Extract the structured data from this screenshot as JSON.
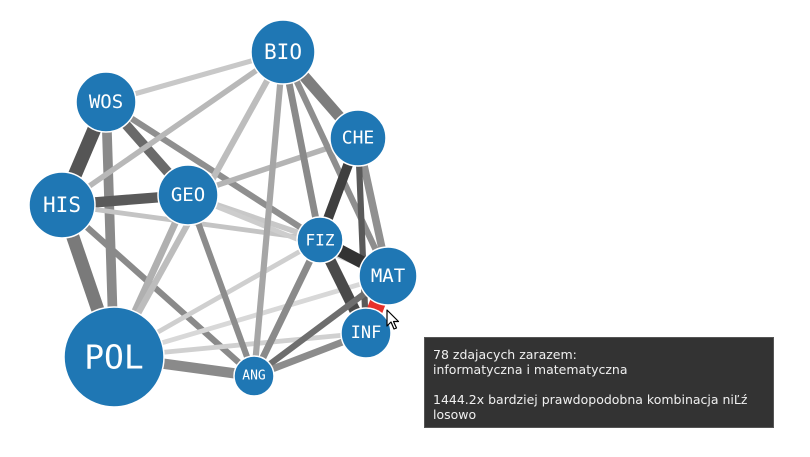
{
  "graph": {
    "nodes": [
      {
        "id": "BIO",
        "label": "BIO"
      },
      {
        "id": "WOS",
        "label": "WOS"
      },
      {
        "id": "CHE",
        "label": "CHE"
      },
      {
        "id": "HIS",
        "label": "HIS"
      },
      {
        "id": "GEO",
        "label": "GEO"
      },
      {
        "id": "FIZ",
        "label": "FIZ"
      },
      {
        "id": "MAT",
        "label": "MAT"
      },
      {
        "id": "INF",
        "label": "INF"
      },
      {
        "id": "POL",
        "label": "POL"
      },
      {
        "id": "ANG",
        "label": "ANG"
      }
    ],
    "edges": [
      {
        "source": "WOS",
        "target": "HIS",
        "weight": 0.85,
        "shade": "#555555"
      },
      {
        "source": "HIS",
        "target": "POL",
        "weight": 0.8,
        "shade": "#7a7a7a"
      },
      {
        "source": "WOS",
        "target": "POL",
        "weight": 0.55,
        "shade": "#8a8a8a"
      },
      {
        "source": "HIS",
        "target": "GEO",
        "weight": 0.6,
        "shade": "#5a5a5a"
      },
      {
        "source": "WOS",
        "target": "GEO",
        "weight": 0.55,
        "shade": "#6a6a6a"
      },
      {
        "source": "WOS",
        "target": "BIO",
        "weight": 0.22,
        "shade": "#c8c8c8"
      },
      {
        "source": "WOS",
        "target": "FIZ",
        "weight": 0.3,
        "shade": "#8f8f8f"
      },
      {
        "source": "HIS",
        "target": "BIO",
        "weight": 0.25,
        "shade": "#b8b8b8"
      },
      {
        "source": "HIS",
        "target": "FIZ",
        "weight": 0.2,
        "shade": "#c4c4c4"
      },
      {
        "source": "HIS",
        "target": "ANG",
        "weight": 0.3,
        "shade": "#8a8a8a"
      },
      {
        "source": "POL",
        "target": "GEO",
        "weight": 0.35,
        "shade": "#b0b0b0"
      },
      {
        "source": "POL",
        "target": "BIO",
        "weight": 0.3,
        "shade": "#bdbdbd"
      },
      {
        "source": "POL",
        "target": "ANG",
        "weight": 0.6,
        "shade": "#8a8a8a"
      },
      {
        "source": "POL",
        "target": "FIZ",
        "weight": 0.2,
        "shade": "#cfcfcf"
      },
      {
        "source": "POL",
        "target": "MAT",
        "weight": 0.2,
        "shade": "#d8d8d8"
      },
      {
        "source": "POL",
        "target": "INF",
        "weight": 0.2,
        "shade": "#d0d0d0"
      },
      {
        "source": "GEO",
        "target": "ANG",
        "weight": 0.3,
        "shade": "#8c8c8c"
      },
      {
        "source": "GEO",
        "target": "FIZ",
        "weight": 0.25,
        "shade": "#c8c8c8"
      },
      {
        "source": "GEO",
        "target": "CHE",
        "weight": 0.25,
        "shade": "#b4b4b4"
      },
      {
        "source": "GEO",
        "target": "MAT",
        "weight": 0.2,
        "shade": "#cdcdcd"
      },
      {
        "source": "BIO",
        "target": "CHE",
        "weight": 0.65,
        "shade": "#7d7d7d"
      },
      {
        "source": "BIO",
        "target": "FIZ",
        "weight": 0.35,
        "shade": "#8a8a8a"
      },
      {
        "source": "BIO",
        "target": "MAT",
        "weight": 0.3,
        "shade": "#8e8e8e"
      },
      {
        "source": "BIO",
        "target": "ANG",
        "weight": 0.3,
        "shade": "#a6a6a6"
      },
      {
        "source": "CHE",
        "target": "FIZ",
        "weight": 0.55,
        "shade": "#3f3f3f"
      },
      {
        "source": "CHE",
        "target": "MAT",
        "weight": 0.4,
        "shade": "#909090"
      },
      {
        "source": "CHE",
        "target": "INF",
        "weight": 0.3,
        "shade": "#5a5a5a"
      },
      {
        "source": "FIZ",
        "target": "MAT",
        "weight": 0.75,
        "shade": "#333333"
      },
      {
        "source": "FIZ",
        "target": "INF",
        "weight": 0.65,
        "shade": "#4a4a4a"
      },
      {
        "source": "FIZ",
        "target": "ANG",
        "weight": 0.35,
        "shade": "#8a8a8a"
      },
      {
        "source": "MAT",
        "target": "ANG",
        "weight": 0.3,
        "shade": "#6e6e6e"
      },
      {
        "source": "INF",
        "target": "ANG",
        "weight": 0.35,
        "shade": "#8c8c8c"
      },
      {
        "source": "MAT",
        "target": "INF",
        "weight": 1.0,
        "shade": "#e8312b",
        "highlighted": true
      }
    ]
  },
  "tooltip": {
    "line1": "78 zdajacych zarazem:",
    "line2": "informatyczna i matematyczna",
    "line3": "1444.2x bardziej prawdopodobna kombinacja niĽź",
    "line4": "losowo"
  },
  "colors": {
    "node": "#1f77b4",
    "node_stroke": "#ffffff",
    "highlight": "#e8312b"
  }
}
